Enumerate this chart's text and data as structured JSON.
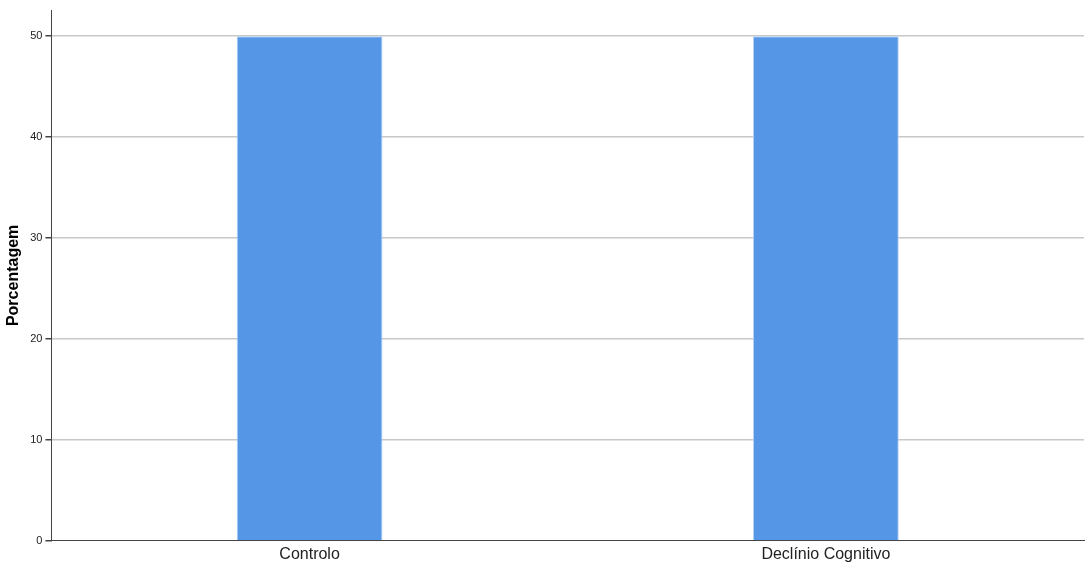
{
  "chart_data": {
    "type": "bar",
    "ylabel": "Porcentagem",
    "categories": [
      "Controlo",
      "Declínio Cognitivo"
    ],
    "values": [
      50,
      50
    ],
    "color": "#5596e6",
    "ylim": [
      0,
      52.6
    ],
    "yticks": [
      0,
      10,
      20,
      30,
      40,
      50
    ],
    "grid": "y",
    "legend": false
  }
}
